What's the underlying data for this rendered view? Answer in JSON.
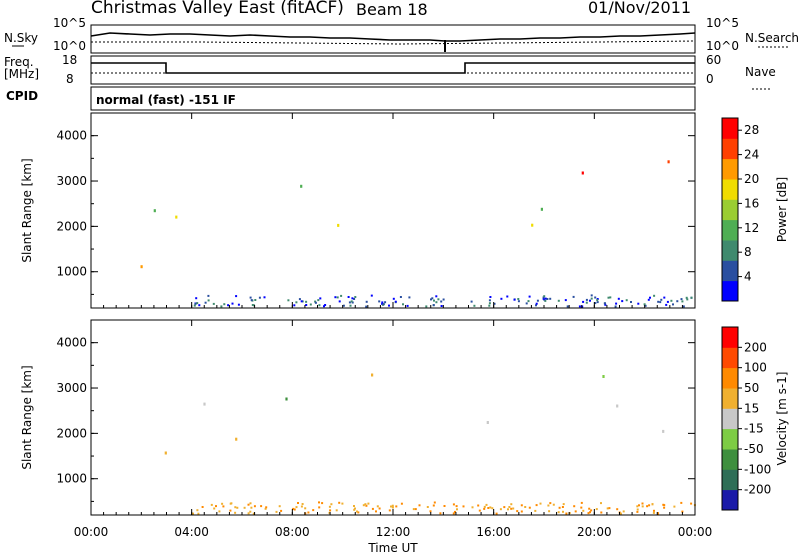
{
  "header": {
    "title": "Christmas Valley East (fitACF)",
    "beam": "Beam 18",
    "date": "01/Nov/2011"
  },
  "strip1": {
    "left_label": "N.Sky",
    "right_label": "N.Search",
    "left_ticks": [
      "10^5",
      "10^0"
    ],
    "right_ticks": [
      "10^5",
      "10^0"
    ]
  },
  "strip2": {
    "left_label_1": "Freq.",
    "left_label_2": "[MHz]",
    "right_label": "Nave",
    "left_ticks": [
      "18",
      "8"
    ],
    "right_ticks": [
      "60",
      "0"
    ]
  },
  "cpid": {
    "label": "CPID",
    "text": "normal (fast) -151 IF"
  },
  "chart_data": [
    {
      "type": "heatmap",
      "title": "",
      "xlabel": "",
      "ylabel": "Slant Range [km]",
      "x_tick_labels": [
        "00:00",
        "04:00",
        "08:00",
        "12:00",
        "16:00",
        "20:00",
        "00:00"
      ],
      "y_tick_labels": [
        "1000",
        "2000",
        "3000",
        "4000"
      ],
      "ylim": [
        200,
        4500
      ],
      "colorbar": {
        "label": "Power [dB]",
        "ticks": [
          "4",
          "8",
          "12",
          "16",
          "20",
          "24",
          "28"
        ],
        "range": [
          0,
          30
        ],
        "colors": [
          "#0000ff",
          "#2a4fa0",
          "#3f8a6e",
          "#4fae54",
          "#9acd32",
          "#f0dc00",
          "#ff9a00",
          "#ff4000",
          "#ff0000"
        ]
      }
    },
    {
      "type": "heatmap",
      "title": "",
      "xlabel": "Time UT",
      "ylabel": "Slant Range [km]",
      "x_tick_labels": [
        "00:00",
        "04:00",
        "08:00",
        "12:00",
        "16:00",
        "20:00",
        "00:00"
      ],
      "y_tick_labels": [
        "1000",
        "2000",
        "3000",
        "4000"
      ],
      "ylim": [
        200,
        4500
      ],
      "colorbar": {
        "label": "Velocity [m s-1]",
        "ticks": [
          "200",
          "100",
          "50",
          "15",
          "-15",
          "-50",
          "-100",
          "-200"
        ],
        "colors": [
          "#1a1aa8",
          "#2f6e57",
          "#3e8f3e",
          "#7dcc44",
          "#c8c8c8",
          "#f0b030",
          "#ff8a00",
          "#ff4a00",
          "#ff0000"
        ]
      }
    }
  ]
}
